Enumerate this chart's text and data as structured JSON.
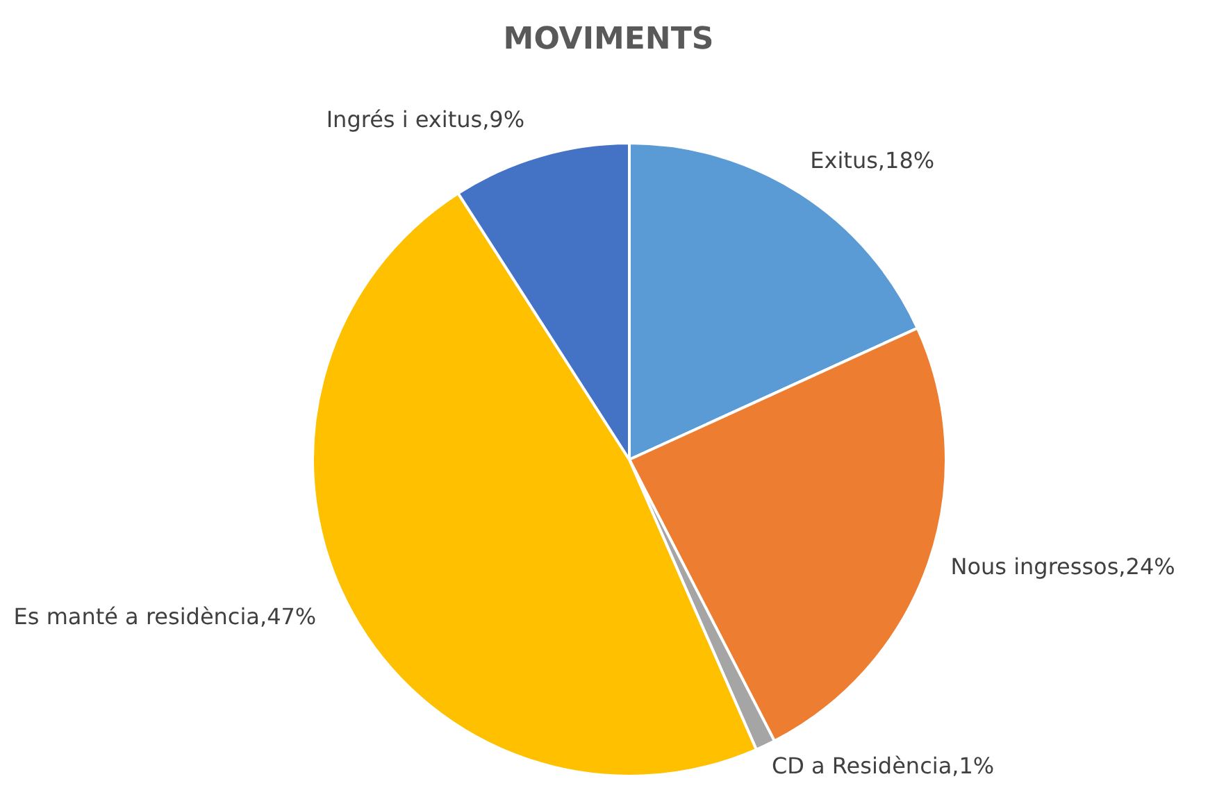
{
  "chart_data": {
    "type": "pie",
    "title": "MOVIMENTS",
    "categories": [
      "Exitus",
      "Nous ingressos",
      "CD a Residència",
      "Es manté a residència",
      "Ingrés i exitus"
    ],
    "values": [
      18,
      24,
      1,
      47,
      9
    ],
    "value_labels": [
      ",18%",
      ",24%",
      ",1%",
      ",47%",
      ",9%"
    ],
    "colors": [
      "#5b9bd5",
      "#ed7d31",
      "#a5a5a5",
      "#ffc000",
      "#4472c4"
    ]
  }
}
